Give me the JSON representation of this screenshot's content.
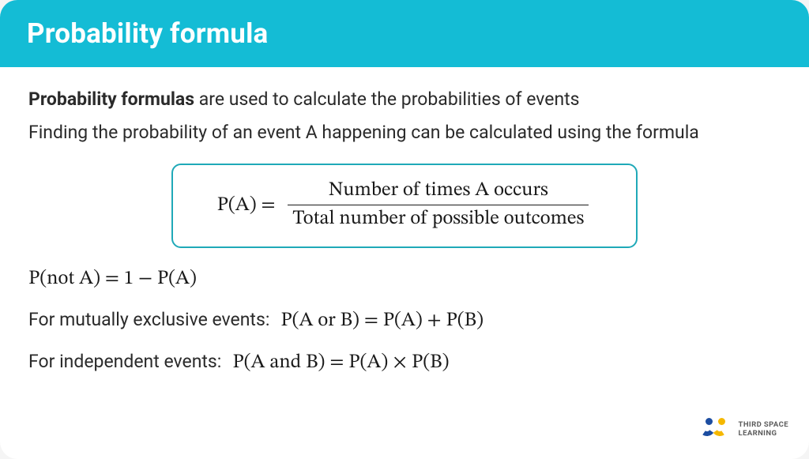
{
  "colors": {
    "header_bg": "#14bcd5",
    "header_fg": "#ffffff",
    "box_border": "#1fa9b8",
    "text": "#2a2a2a"
  },
  "header": {
    "title": "Probability formula"
  },
  "intro": {
    "bold": "Probability formulas",
    "rest": " are used to calculate the probabilities of events",
    "line2": "Finding the probability of an event A happening can be calculated using the formula"
  },
  "main_formula": {
    "lhs": "P(A) =",
    "numerator": "Number of times A occurs",
    "denominator": "Total number of possible outcomes"
  },
  "complement": "P(not A) = 1 − P(A)",
  "mutually_exclusive": {
    "label": "For mutually exclusive events:",
    "formula": "P(A or B) = P(A) + P(B)"
  },
  "independent": {
    "label": "For independent events:",
    "formula": "P(A and B) = P(A) × P(B)"
  },
  "brand": {
    "line1": "THIRD SPACE",
    "line2": "LEARNING"
  }
}
